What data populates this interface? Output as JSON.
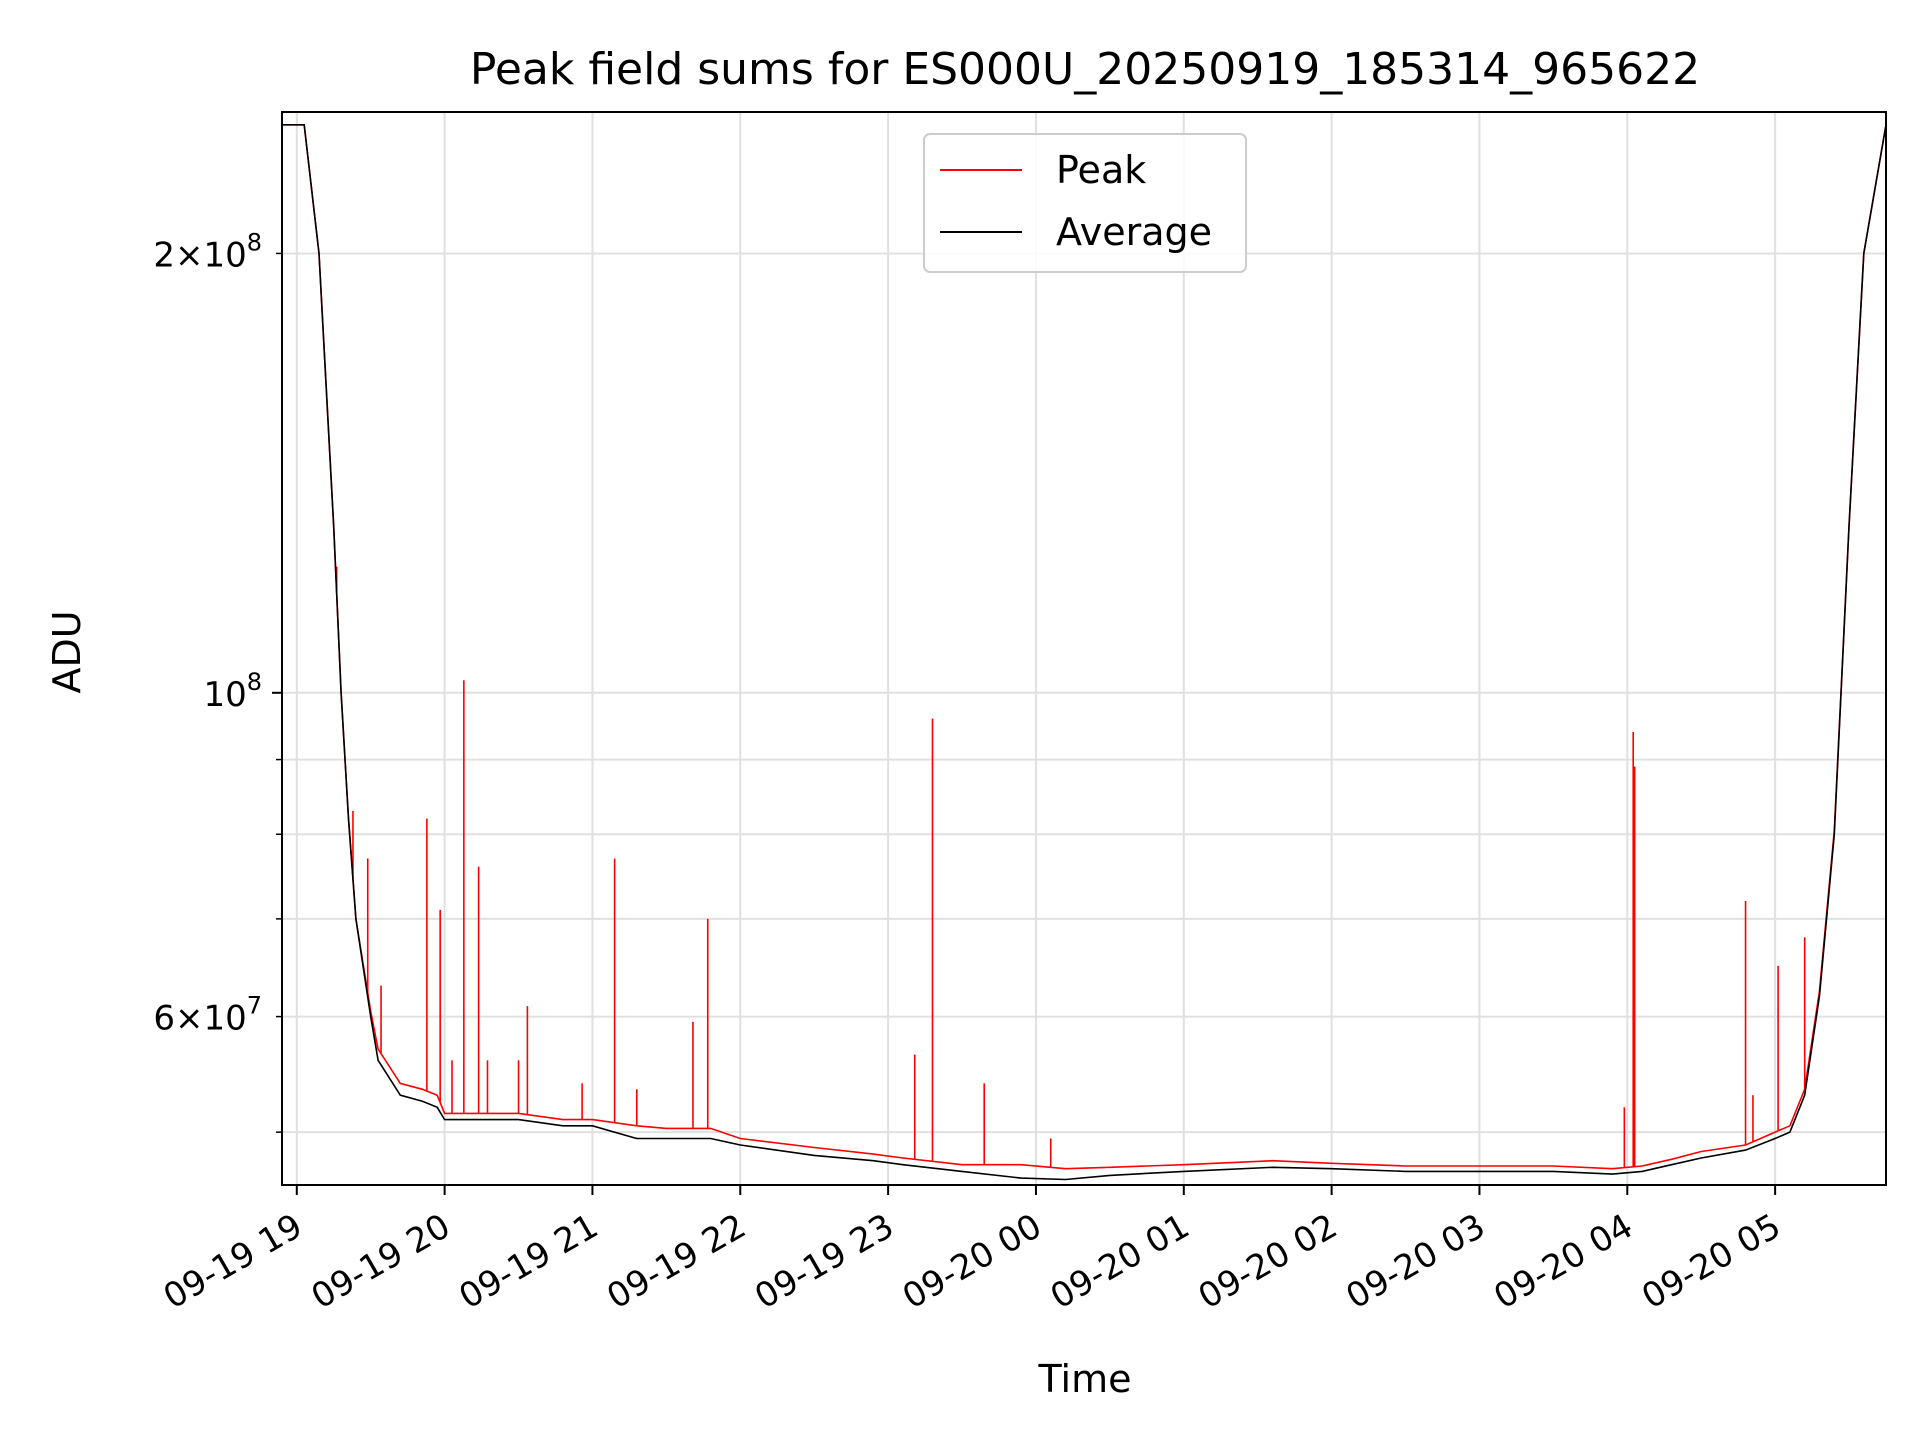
{
  "chart_data": {
    "type": "line",
    "title": "Peak field sums for ES000U_20250919_185314_965622",
    "xlabel": "Time",
    "ylabel": "ADU",
    "yscale": "log",
    "ylim": [
      46000000,
      250000000
    ],
    "xlim_hours": [
      -0.1,
      10.75
    ],
    "grid": true,
    "legend_position": "top-center",
    "x_unit": "hours since 09-19 19:00",
    "x_ticks": [
      {
        "hour": 0,
        "label": "09-19 19"
      },
      {
        "hour": 1,
        "label": "09-19 20"
      },
      {
        "hour": 2,
        "label": "09-19 21"
      },
      {
        "hour": 3,
        "label": "09-19 22"
      },
      {
        "hour": 4,
        "label": "09-19 23"
      },
      {
        "hour": 5,
        "label": "09-20 00"
      },
      {
        "hour": 6,
        "label": "09-20 01"
      },
      {
        "hour": 7,
        "label": "09-20 02"
      },
      {
        "hour": 8,
        "label": "09-20 03"
      },
      {
        "hour": 9,
        "label": "09-20 04"
      },
      {
        "hour": 10,
        "label": "09-20 05"
      }
    ],
    "y_ticks_major": [
      {
        "value": 100000000,
        "base": "10",
        "exp": "8"
      }
    ],
    "y_ticks_minor_labeled": [
      {
        "value": 200000000,
        "coef": "2",
        "base": "10",
        "exp": "8"
      },
      {
        "value": 60000000,
        "coef": "6",
        "base": "10",
        "exp": "7"
      }
    ],
    "y_ticks_minor": [
      50000000,
      60000000,
      70000000,
      80000000,
      90000000,
      200000000
    ],
    "series": [
      {
        "name": "Average",
        "color": "#000000",
        "x": [
          -0.1,
          0.05,
          0.15,
          0.25,
          0.3,
          0.35,
          0.4,
          0.5,
          0.55,
          0.7,
          0.85,
          0.95,
          1.0,
          1.2,
          1.5,
          1.8,
          2.0,
          2.3,
          2.5,
          2.8,
          3.0,
          3.5,
          3.9,
          4.1,
          4.5,
          4.9,
          5.2,
          5.5,
          6.0,
          6.6,
          7.0,
          7.5,
          8.0,
          8.5,
          8.9,
          9.1,
          9.3,
          9.5,
          9.8,
          10.0,
          10.1,
          10.2,
          10.3,
          10.4,
          10.5,
          10.6,
          10.75
        ],
        "values": [
          245000000,
          245000000,
          200000000,
          130000000,
          100000000,
          82000000,
          70000000,
          60000000,
          56000000,
          53000000,
          52500000,
          52000000,
          51000000,
          51000000,
          51000000,
          50500000,
          50500000,
          49500000,
          49500000,
          49500000,
          49000000,
          48200000,
          47800000,
          47500000,
          47000000,
          46500000,
          46400000,
          46700000,
          47000000,
          47300000,
          47200000,
          47000000,
          47000000,
          47000000,
          46800000,
          47000000,
          47500000,
          48000000,
          48600000,
          49500000,
          50000000,
          53000000,
          62000000,
          80000000,
          130000000,
          200000000,
          245000000
        ]
      },
      {
        "name": "Peak",
        "color": "#ff0000",
        "x": [
          -0.1,
          0.05,
          0.15,
          0.25,
          0.3,
          0.35,
          0.4,
          0.5,
          0.55,
          0.7,
          0.85,
          0.95,
          1.0,
          1.2,
          1.5,
          1.8,
          2.0,
          2.3,
          2.5,
          2.8,
          3.0,
          3.5,
          3.9,
          4.1,
          4.5,
          4.9,
          5.2,
          5.5,
          6.0,
          6.6,
          7.0,
          7.5,
          8.0,
          8.5,
          8.9,
          9.1,
          9.3,
          9.5,
          9.8,
          10.0,
          10.1,
          10.2,
          10.3,
          10.4,
          10.5,
          10.6,
          10.75
        ],
        "values": [
          245000000,
          245000000,
          200000000,
          130000000,
          100000000,
          82000000,
          70000000,
          60500000,
          57000000,
          54000000,
          53500000,
          53000000,
          51500000,
          51500000,
          51500000,
          51000000,
          51000000,
          50500000,
          50300000,
          50300000,
          49500000,
          48800000,
          48300000,
          48000000,
          47500000,
          47500000,
          47200000,
          47300000,
          47500000,
          47800000,
          47600000,
          47400000,
          47400000,
          47400000,
          47200000,
          47400000,
          47900000,
          48500000,
          49000000,
          50000000,
          50500000,
          53500000,
          62500000,
          80500000,
          130000000,
          200000000,
          245000000
        ],
        "spikes": [
          {
            "x": 0.27,
            "value": 122000000
          },
          {
            "x": 0.38,
            "value": 83000000
          },
          {
            "x": 0.48,
            "value": 77000000
          },
          {
            "x": 0.57,
            "value": 63000000
          },
          {
            "x": 0.88,
            "value": 82000000
          },
          {
            "x": 0.97,
            "value": 71000000
          },
          {
            "x": 1.05,
            "value": 56000000
          },
          {
            "x": 1.13,
            "value": 102000000
          },
          {
            "x": 1.23,
            "value": 76000000
          },
          {
            "x": 1.29,
            "value": 56000000
          },
          {
            "x": 1.5,
            "value": 56000000
          },
          {
            "x": 1.56,
            "value": 61000000
          },
          {
            "x": 1.93,
            "value": 54000000
          },
          {
            "x": 2.15,
            "value": 77000000
          },
          {
            "x": 2.3,
            "value": 53500000
          },
          {
            "x": 2.68,
            "value": 59500000
          },
          {
            "x": 2.78,
            "value": 70000000
          },
          {
            "x": 4.18,
            "value": 56500000
          },
          {
            "x": 4.3,
            "value": 96000000
          },
          {
            "x": 4.65,
            "value": 54000000
          },
          {
            "x": 5.1,
            "value": 49500000
          },
          {
            "x": 9.04,
            "value": 94000000
          },
          {
            "x": 9.05,
            "value": 89000000
          },
          {
            "x": 8.98,
            "value": 52000000
          },
          {
            "x": 9.8,
            "value": 72000000
          },
          {
            "x": 9.85,
            "value": 53000000
          },
          {
            "x": 10.02,
            "value": 65000000
          },
          {
            "x": 10.2,
            "value": 68000000
          }
        ]
      }
    ]
  }
}
